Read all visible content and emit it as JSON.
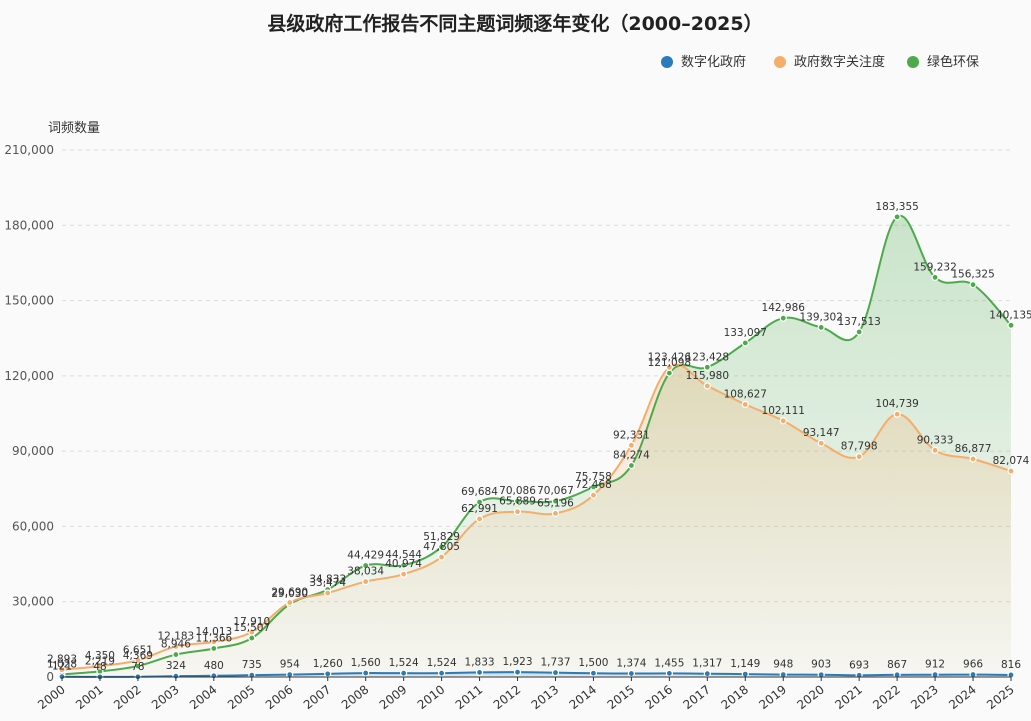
{
  "chart_data": {
    "type": "area",
    "title": "县级政府工作报告不同主题词频逐年变化（2000–2025）",
    "ylabel": "词频数量",
    "xlabel": "",
    "ylim": [
      0,
      210000
    ],
    "yticks": [
      0,
      30000,
      60000,
      90000,
      120000,
      150000,
      180000,
      210000
    ],
    "ytick_labels": [
      "0",
      "30,000",
      "60,000",
      "90,000",
      "120,000",
      "150,000",
      "180,000",
      "210,000"
    ],
    "grid": true,
    "legend_position": "top-right",
    "categories": [
      "2000",
      "2001",
      "2002",
      "2003",
      "2004",
      "2005",
      "2006",
      "2007",
      "2008",
      "2009",
      "2010",
      "2011",
      "2012",
      "2013",
      "2014",
      "2015",
      "2016",
      "2017",
      "2018",
      "2019",
      "2020",
      "2021",
      "2022",
      "2023",
      "2024",
      "2025"
    ],
    "series": [
      {
        "name": "数字化政府",
        "color": "#2b7bba",
        "values": [
          121,
          48,
          78,
          324,
          480,
          735,
          954,
          1260,
          1560,
          1524,
          1524,
          1833,
          1923,
          1737,
          1500,
          1374,
          1455,
          1317,
          1149,
          948,
          903,
          693,
          867,
          912,
          966,
          816
        ],
        "labels": [
          "121",
          "48",
          "78",
          "324",
          "480",
          "735",
          "954",
          "1,260",
          "1,560",
          "1,524",
          "1,524",
          "1,833",
          "1,923",
          "1,737",
          "1,500",
          "1,374",
          "1,455",
          "1,317",
          "1,149",
          "948",
          "903",
          "693",
          "867",
          "912",
          "966",
          "816"
        ]
      },
      {
        "name": "政府数字关注度",
        "color": "#f5ad6a",
        "values": [
          2893,
          4350,
          6651,
          12183,
          14013,
          17910,
          29690,
          33474,
          38034,
          40974,
          47805,
          62991,
          65889,
          65196,
          72468,
          92331,
          123426,
          115980,
          108627,
          102111,
          93147,
          87798,
          104739,
          90333,
          86877,
          82074
        ],
        "labels": [
          "2,893",
          "4,350",
          "6,651",
          "12,183",
          "14,013",
          "17,910",
          "29,690",
          "33,474",
          "38,034",
          "40,974",
          "47,805",
          "62,991",
          "65,889",
          "65,196",
          "72,468",
          "92,331",
          "123,426",
          "115,980",
          "108,627",
          "102,111",
          "93,147",
          "87,798",
          "104,739",
          "90,333",
          "86,877",
          "82,074"
        ]
      },
      {
        "name": "绿色环保",
        "color": "#4caa4c",
        "values": [
          1028,
          2219,
          4369,
          8946,
          11366,
          15507,
          29030,
          34833,
          44429,
          44544,
          51829,
          69684,
          70086,
          70067,
          75758,
          84274,
          121098,
          123428,
          133097,
          142986,
          139302,
          137513,
          183355,
          159232,
          156325,
          140135
        ],
        "labels": [
          "1,028",
          "2,219",
          "4,369",
          "8,946",
          "11,366",
          "15,507",
          "29,030",
          "34,833",
          "44,429",
          "44,544",
          "51,829",
          "69,684",
          "70,086",
          "70,067",
          "75,758",
          "84,274",
          "121,098",
          "123,428",
          "133,097",
          "142,986",
          "139,302",
          "137,513",
          "183,355",
          "159,232",
          "156,325",
          "140,135"
        ]
      }
    ]
  }
}
